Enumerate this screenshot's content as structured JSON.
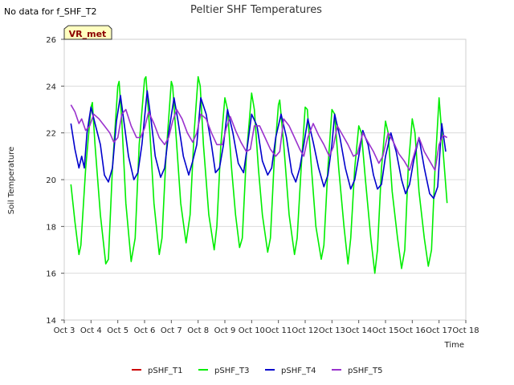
{
  "nodata_text": "No data for f_SHF_T2",
  "badge": "VR_met",
  "colors": {
    "band": "#f0f0f0",
    "grid": "#dcdcdc",
    "badge_fill": "#ffffc0",
    "badge_border": "#333333",
    "badge_text": "#8b0000"
  },
  "chart_data": {
    "type": "line",
    "title": "Peltier SHF Temperatures",
    "xlabel": "Time",
    "ylabel": "Soil Temperature",
    "xlim": [
      3,
      18
    ],
    "ylim": [
      14,
      26
    ],
    "xticks": [
      3,
      4,
      5,
      6,
      7,
      8,
      9,
      10,
      11,
      12,
      13,
      14,
      15,
      16,
      17,
      18
    ],
    "xtick_labels": [
      "Oct 3",
      "Oct 4",
      "Oct 5",
      "Oct 6",
      "Oct 7",
      "Oct 8",
      "Oct 9",
      "Oct 10",
      "Oct 11",
      "Oct 12",
      "Oct 13",
      "Oct 14",
      "Oct 15",
      "Oct 16",
      "Oct 17",
      "Oct 18"
    ],
    "yticks": [
      14,
      16,
      18,
      20,
      22,
      24,
      26
    ],
    "ytick_labels": [
      "14",
      "16",
      "18",
      "20",
      "22",
      "24",
      "26"
    ],
    "grid": true,
    "legend_position": "bottom",
    "series": [
      {
        "name": "pSHF_T1",
        "color": "#cc0000",
        "x": [],
        "y": []
      },
      {
        "name": "pSHF_T3",
        "color": "#00ee00",
        "x": [
          3.25,
          3.4,
          3.55,
          3.62,
          3.8,
          4.0,
          4.05,
          4.15,
          4.35,
          4.55,
          4.65,
          4.8,
          5.0,
          5.05,
          5.15,
          5.3,
          5.5,
          5.65,
          5.8,
          6.0,
          6.05,
          6.2,
          6.35,
          6.55,
          6.65,
          6.8,
          7.0,
          7.05,
          7.2,
          7.35,
          7.55,
          7.7,
          7.85,
          8.0,
          8.08,
          8.2,
          8.4,
          8.6,
          8.7,
          8.85,
          9.0,
          9.1,
          9.25,
          9.4,
          9.55,
          9.65,
          9.8,
          10.0,
          10.1,
          10.25,
          10.4,
          10.6,
          10.7,
          10.85,
          11.0,
          11.05,
          11.2,
          11.4,
          11.6,
          11.7,
          11.85,
          12.0,
          12.08,
          12.2,
          12.4,
          12.6,
          12.7,
          12.85,
          13.0,
          13.1,
          13.25,
          13.45,
          13.6,
          13.7,
          13.85,
          14.0,
          14.1,
          14.25,
          14.45,
          14.6,
          14.7,
          14.85,
          15.0,
          15.1,
          15.25,
          15.45,
          15.6,
          15.72,
          15.85,
          16.0,
          16.1,
          16.25,
          16.45,
          16.6,
          16.72,
          16.85,
          17.0,
          17.1,
          17.3
        ],
        "y": [
          19.8,
          18.2,
          16.8,
          17.2,
          20.5,
          23.1,
          23.3,
          21.5,
          18.5,
          16.4,
          16.6,
          20.5,
          24.0,
          24.2,
          22.5,
          19.0,
          16.5,
          17.5,
          21.5,
          24.3,
          24.4,
          22.0,
          19.0,
          16.8,
          17.5,
          21.0,
          24.2,
          24.0,
          21.5,
          19.0,
          17.3,
          18.5,
          22.0,
          24.4,
          24.0,
          21.5,
          18.5,
          17.0,
          18.0,
          21.5,
          23.5,
          23.0,
          20.5,
          18.5,
          17.1,
          17.5,
          21.0,
          23.7,
          23.0,
          20.5,
          18.5,
          16.9,
          17.5,
          21.0,
          23.2,
          23.4,
          21.5,
          18.5,
          16.8,
          17.5,
          20.5,
          23.1,
          23.0,
          21.0,
          18.0,
          16.6,
          17.2,
          20.5,
          23.0,
          22.8,
          20.5,
          18.0,
          16.4,
          17.5,
          20.5,
          22.3,
          22.0,
          20.0,
          17.5,
          16.0,
          17.0,
          20.5,
          22.5,
          22.0,
          19.5,
          17.5,
          16.2,
          17.0,
          20.5,
          22.6,
          22.0,
          19.5,
          17.5,
          16.3,
          17.0,
          20.5,
          23.5,
          22.0,
          19.0
        ]
      },
      {
        "name": "pSHF_T4",
        "color": "#0000cc",
        "x": [
          3.25,
          3.4,
          3.55,
          3.65,
          3.75,
          3.85,
          4.0,
          4.15,
          4.35,
          4.5,
          4.65,
          4.8,
          4.95,
          5.1,
          5.25,
          5.4,
          5.6,
          5.75,
          5.9,
          6.1,
          6.25,
          6.4,
          6.6,
          6.75,
          6.9,
          7.1,
          7.25,
          7.45,
          7.65,
          7.8,
          7.95,
          8.1,
          8.3,
          8.5,
          8.65,
          8.8,
          8.95,
          9.1,
          9.3,
          9.5,
          9.7,
          9.85,
          10.0,
          10.2,
          10.4,
          10.6,
          10.75,
          10.9,
          11.1,
          11.3,
          11.5,
          11.65,
          11.8,
          11.95,
          12.1,
          12.3,
          12.5,
          12.7,
          12.85,
          13.0,
          13.1,
          13.3,
          13.5,
          13.7,
          13.85,
          14.0,
          14.15,
          14.35,
          14.55,
          14.7,
          14.85,
          15.0,
          15.2,
          15.4,
          15.6,
          15.75,
          15.9,
          16.05,
          16.25,
          16.45,
          16.65,
          16.8,
          16.95,
          17.1,
          17.25
        ],
        "y": [
          22.4,
          21.3,
          20.5,
          21.0,
          20.5,
          22.0,
          23.1,
          22.4,
          21.5,
          20.2,
          19.9,
          20.5,
          22.5,
          23.6,
          22.3,
          21.0,
          20.0,
          20.3,
          21.5,
          23.8,
          22.5,
          21.0,
          20.1,
          20.5,
          22.0,
          23.5,
          22.5,
          21.0,
          20.2,
          20.8,
          21.5,
          23.5,
          22.8,
          21.5,
          20.3,
          20.5,
          21.5,
          23.0,
          22.0,
          20.7,
          20.3,
          21.5,
          22.8,
          22.3,
          20.8,
          20.2,
          20.5,
          21.8,
          22.8,
          21.8,
          20.3,
          19.9,
          20.5,
          21.5,
          22.6,
          21.6,
          20.5,
          19.7,
          20.2,
          21.5,
          22.8,
          21.8,
          20.5,
          19.6,
          20.0,
          21.0,
          22.1,
          21.5,
          20.2,
          19.6,
          19.8,
          21.0,
          22.0,
          21.2,
          20.0,
          19.4,
          19.8,
          20.8,
          21.8,
          20.5,
          19.4,
          19.2,
          19.7,
          22.4,
          21.2
        ]
      },
      {
        "name": "pSHF_T5",
        "color": "#9a32cd",
        "x": [
          3.25,
          3.4,
          3.55,
          3.65,
          3.8,
          3.95,
          4.1,
          4.3,
          4.5,
          4.7,
          4.85,
          5.0,
          5.15,
          5.3,
          5.5,
          5.7,
          5.85,
          6.0,
          6.15,
          6.35,
          6.55,
          6.75,
          6.9,
          7.05,
          7.2,
          7.4,
          7.6,
          7.8,
          7.95,
          8.1,
          8.3,
          8.5,
          8.7,
          8.9,
          9.05,
          9.2,
          9.4,
          9.6,
          9.8,
          9.95,
          10.1,
          10.3,
          10.5,
          10.7,
          10.9,
          11.05,
          11.2,
          11.4,
          11.6,
          11.8,
          11.95,
          12.1,
          12.3,
          12.5,
          12.7,
          12.9,
          13.05,
          13.2,
          13.4,
          13.6,
          13.8,
          13.95,
          14.15,
          14.35,
          14.55,
          14.75,
          14.9,
          15.1,
          15.3,
          15.5,
          15.7,
          15.9,
          16.05,
          16.25,
          16.45,
          16.65,
          16.85,
          17.0,
          17.15,
          17.3
        ],
        "y": [
          23.2,
          22.9,
          22.4,
          22.6,
          22.1,
          22.3,
          22.8,
          22.6,
          22.3,
          22.0,
          21.6,
          21.8,
          22.8,
          23.0,
          22.3,
          21.8,
          21.8,
          22.2,
          22.9,
          22.4,
          21.8,
          21.5,
          21.8,
          22.5,
          23.0,
          22.6,
          22.0,
          21.6,
          22.0,
          22.8,
          22.6,
          22.0,
          21.5,
          21.5,
          22.2,
          22.7,
          22.1,
          21.6,
          21.2,
          21.3,
          22.3,
          22.3,
          21.8,
          21.3,
          21.0,
          21.2,
          22.6,
          22.3,
          21.8,
          21.3,
          21.0,
          21.8,
          22.4,
          21.9,
          21.5,
          21.0,
          21.4,
          22.3,
          21.9,
          21.5,
          21.0,
          21.1,
          22.0,
          21.6,
          21.2,
          20.7,
          21.0,
          22.0,
          21.6,
          21.1,
          20.8,
          20.4,
          21.0,
          21.8,
          21.2,
          20.8,
          20.4,
          21.5,
          21.9,
          21.8
        ]
      }
    ]
  }
}
